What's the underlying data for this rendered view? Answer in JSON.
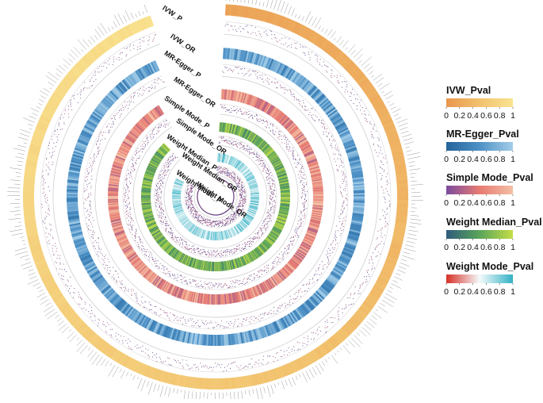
{
  "chart_data": {
    "type": "circular-heatmap",
    "tracks": [
      {
        "p_label": "IVW_P",
        "or_label": "IVW_OR",
        "scale": "IVW_Pval",
        "colors": [
          "#e9964e",
          "#f2c26e",
          "#f9e390"
        ],
        "start_deg": 3,
        "end_deg": 340
      },
      {
        "p_label": "MR-Egger_P",
        "or_label": "MR-Egger_OR",
        "scale": "MR-Egger_Pval",
        "colors": [
          "#23649a",
          "#4e91c6",
          "#a3cde8"
        ],
        "start_deg": 3,
        "end_deg": 336
      },
      {
        "p_label": "Simple Mode_P",
        "or_label": "Simple Mode_OR",
        "scale": "Simple Mode_Pval",
        "colors": [
          "#7a4b9e",
          "#e77b73",
          "#f3c0a4"
        ],
        "start_deg": 3,
        "end_deg": 328
      },
      {
        "p_label": "Weight Median_P",
        "or_label": "Weight Median_OR",
        "scale": "Weight Median_Pval",
        "colors": [
          "#2f5b7c",
          "#5aa55a",
          "#c5dd46"
        ],
        "start_deg": 3,
        "end_deg": 316
      },
      {
        "p_label": "Weight Mode_P",
        "or_label": "Weight Mode_OR",
        "scale": "Weight Mode_Pval",
        "colors": [
          "#d73027",
          "#f4fbfc",
          "#32b1c4"
        ],
        "start_deg": 3,
        "end_deg": 296
      }
    ],
    "legend_ticks": [
      "0",
      "0.2",
      "0.4",
      "0.6",
      "0.8",
      "1"
    ],
    "legend_placement": "right",
    "value_range": [
      0,
      1
    ]
  }
}
